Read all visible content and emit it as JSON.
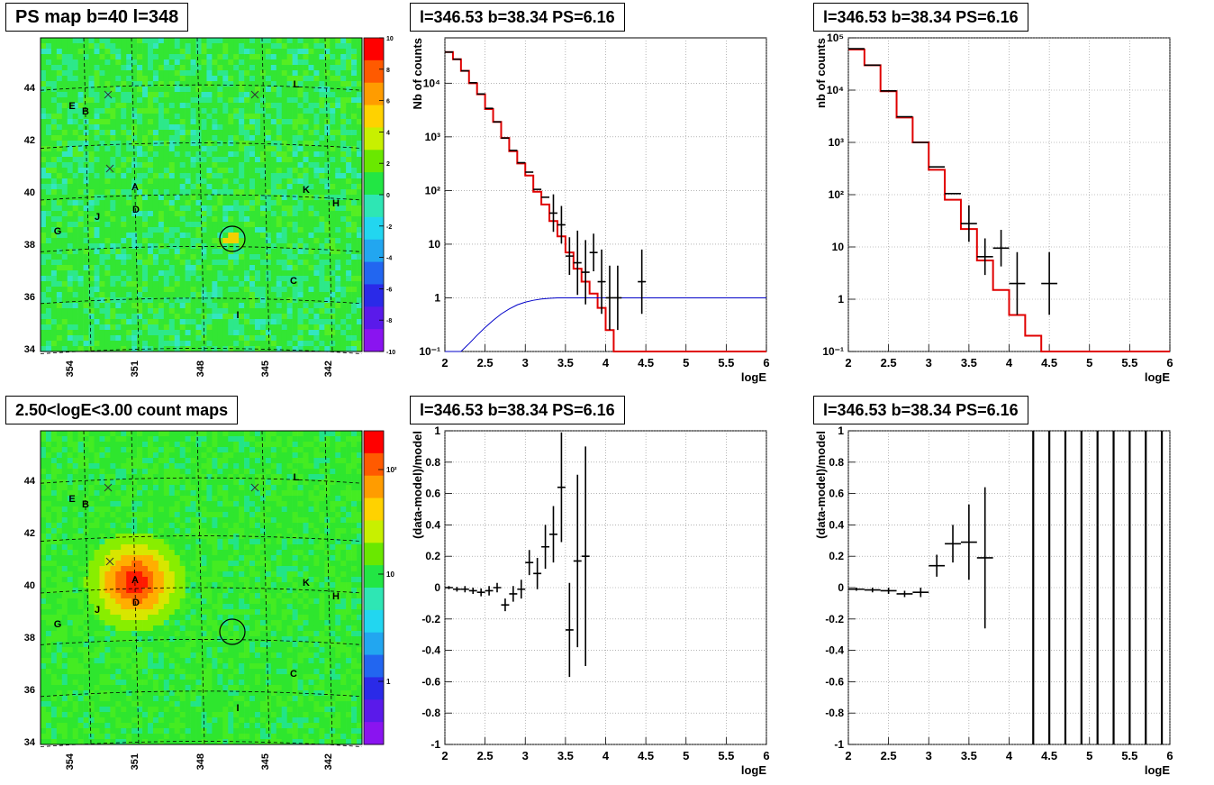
{
  "titles": {
    "ps_map": "PS map b=40 l=348",
    "count_map": "2.50<logE<3.00 count maps",
    "spec_mid": "l=346.53 b=38.34 PS=6.16",
    "spec_right": "l=346.53 b=38.34 PS=6.16",
    "res_mid": "l=346.53 b=38.34 PS=6.16",
    "res_right": "l=346.53 b=38.34 PS=6.16"
  },
  "chart_data": [
    {
      "id": "ps_map",
      "type": "heatmap",
      "x_ticks": [
        "354",
        "351",
        "348",
        "345",
        "342"
      ],
      "y_ticks": [
        "34",
        "36",
        "38",
        "40",
        "42",
        "44"
      ],
      "colorbar_ticks": [
        "10",
        "8",
        "6",
        "4",
        "2",
        "0",
        "-2",
        "-4",
        "-6",
        "-8",
        "-10"
      ],
      "sources": [
        "E",
        "B",
        "A",
        "D",
        "J",
        "G",
        "K",
        "H",
        "L",
        "C",
        "I"
      ]
    },
    {
      "id": "count_map",
      "type": "heatmap",
      "x_ticks": [
        "354",
        "351",
        "348",
        "345",
        "342"
      ],
      "y_ticks": [
        "34",
        "36",
        "38",
        "40",
        "42",
        "44"
      ],
      "colorbar_ticks": [
        "10²",
        "10",
        "1"
      ],
      "sources": [
        "E",
        "B",
        "A",
        "D",
        "J",
        "G",
        "K",
        "H",
        "L",
        "C",
        "I"
      ]
    },
    {
      "id": "spec_mid",
      "type": "line",
      "ylog": true,
      "xlabel": "logE",
      "ylabel": "Nb of counts",
      "xlim": [
        2,
        6
      ],
      "ylim": [
        0.1,
        70000
      ],
      "x_ticks": [
        "2",
        "2.5",
        "3",
        "3.5",
        "4",
        "4.5",
        "5",
        "5.5",
        "6"
      ],
      "y_ticks": [
        "10⁻¹",
        "1",
        "10",
        "10²",
        "10³",
        "10⁴"
      ],
      "model_edges": [
        2.0,
        2.1,
        2.2,
        2.3,
        2.4,
        2.5,
        2.6,
        2.7,
        2.8,
        2.9,
        3.0,
        3.1,
        3.2,
        3.3,
        3.4,
        3.5,
        3.6,
        3.7,
        3.8,
        3.9,
        4.0,
        4.1,
        4.2,
        4.3,
        4.4,
        4.5,
        5.0,
        5.5,
        6.0
      ],
      "model_values": [
        38000,
        28000,
        17000,
        10000,
        6200,
        3300,
        1900,
        950,
        540,
        320,
        190,
        95,
        55,
        27,
        14,
        7,
        3.5,
        2.0,
        1.2,
        0.65,
        0.25,
        0.1,
        0.1,
        0.1,
        0.1,
        0.1,
        0.1,
        0.1
      ],
      "data_points": [
        {
          "x": 2.05,
          "y": 38000
        },
        {
          "x": 2.15,
          "y": 28000
        },
        {
          "x": 2.25,
          "y": 17000
        },
        {
          "x": 2.35,
          "y": 10200
        },
        {
          "x": 2.45,
          "y": 6300
        },
        {
          "x": 2.55,
          "y": 3400
        },
        {
          "x": 2.65,
          "y": 1900
        },
        {
          "x": 2.75,
          "y": 950
        },
        {
          "x": 2.85,
          "y": 560
        },
        {
          "x": 2.95,
          "y": 330
        },
        {
          "x": 3.05,
          "y": 220
        },
        {
          "x": 3.15,
          "y": 105
        },
        {
          "x": 3.25,
          "y": 75
        },
        {
          "x": 3.35,
          "y": 38
        },
        {
          "x": 3.45,
          "y": 23
        },
        {
          "x": 3.55,
          "y": 6
        },
        {
          "x": 3.65,
          "y": 4.5
        },
        {
          "x": 3.75,
          "y": 3
        },
        {
          "x": 3.85,
          "y": 7
        },
        {
          "x": 3.95,
          "y": 2
        },
        {
          "x": 4.05,
          "y": 1
        },
        {
          "x": 4.15,
          "y": 1
        },
        {
          "x": 4.45,
          "y": 2
        }
      ],
      "blue_x": [
        2.0,
        2.1,
        2.2,
        2.3,
        2.4,
        2.5,
        2.6,
        2.7,
        2.8,
        2.9,
        3.0,
        3.1,
        3.2,
        3.3,
        3.4,
        3.5,
        3.6,
        3.7,
        4.0,
        5.0,
        6.0
      ],
      "blue_y": [
        0.1,
        0.1,
        0.1,
        0.14,
        0.2,
        0.28,
        0.38,
        0.5,
        0.62,
        0.74,
        0.83,
        0.9,
        0.95,
        0.98,
        1.0,
        1.0,
        1.0,
        1.0,
        1.0,
        1.0,
        1.0
      ]
    },
    {
      "id": "spec_right",
      "type": "line",
      "ylog": true,
      "xlabel": "logE",
      "ylabel": "nb of counts",
      "xlim": [
        2,
        6
      ],
      "ylim": [
        0.1,
        100000
      ],
      "x_ticks": [
        "2",
        "2.5",
        "3",
        "3.5",
        "4",
        "4.5",
        "5",
        "5.5",
        "6"
      ],
      "y_ticks": [
        "10⁻¹",
        "1",
        "10",
        "10²",
        "10³",
        "10⁴",
        "10⁵"
      ],
      "model_edges": [
        2.0,
        2.2,
        2.4,
        2.6,
        2.8,
        3.0,
        3.2,
        3.4,
        3.6,
        3.8,
        4.0,
        4.2,
        4.4,
        4.6,
        5.0,
        5.5,
        6.0
      ],
      "model_values": [
        60000,
        30000,
        9500,
        3000,
        1000,
        300,
        80,
        22,
        5.5,
        1.5,
        0.5,
        0.2,
        0.1,
        0.1,
        0.1,
        0.1
      ],
      "data_points": [
        {
          "x": 2.1,
          "y": 62000
        },
        {
          "x": 2.3,
          "y": 30000
        },
        {
          "x": 2.5,
          "y": 9700
        },
        {
          "x": 2.7,
          "y": 3100
        },
        {
          "x": 2.9,
          "y": 1000
        },
        {
          "x": 3.1,
          "y": 340
        },
        {
          "x": 3.3,
          "y": 105
        },
        {
          "x": 3.5,
          "y": 28
        },
        {
          "x": 3.7,
          "y": 6.5
        },
        {
          "x": 3.9,
          "y": 9.5
        },
        {
          "x": 4.1,
          "y": 2
        },
        {
          "x": 4.5,
          "y": 2
        }
      ]
    },
    {
      "id": "res_mid",
      "type": "scatter",
      "xlabel": "logE",
      "ylabel": "(data-model)/model",
      "xlim": [
        2,
        6
      ],
      "ylim": [
        -1,
        1
      ],
      "x_ticks": [
        "2",
        "2.5",
        "3",
        "3.5",
        "4",
        "4.5",
        "5",
        "5.5",
        "6"
      ],
      "y_ticks": [
        "-1",
        "-0.8",
        "-0.6",
        "-0.4",
        "-0.2",
        "0",
        "0.2",
        "0.4",
        "0.6",
        "0.8",
        "1"
      ],
      "points": [
        {
          "x": 2.05,
          "y": 0.0,
          "err": 0.01
        },
        {
          "x": 2.15,
          "y": -0.01,
          "err": 0.015
        },
        {
          "x": 2.25,
          "y": -0.01,
          "err": 0.02
        },
        {
          "x": 2.35,
          "y": -0.02,
          "err": 0.02
        },
        {
          "x": 2.45,
          "y": -0.03,
          "err": 0.025
        },
        {
          "x": 2.55,
          "y": -0.02,
          "err": 0.03
        },
        {
          "x": 2.65,
          "y": 0.0,
          "err": 0.03
        },
        {
          "x": 2.75,
          "y": -0.11,
          "err": 0.04
        },
        {
          "x": 2.85,
          "y": -0.04,
          "err": 0.05
        },
        {
          "x": 2.95,
          "y": -0.01,
          "err": 0.06
        },
        {
          "x": 3.05,
          "y": 0.16,
          "err": 0.08
        },
        {
          "x": 3.15,
          "y": 0.09,
          "err": 0.1
        },
        {
          "x": 3.25,
          "y": 0.26,
          "err": 0.14
        },
        {
          "x": 3.35,
          "y": 0.34,
          "err": 0.18
        },
        {
          "x": 3.45,
          "y": 0.64,
          "err": 0.35
        },
        {
          "x": 3.55,
          "y": -0.27,
          "err": 0.3
        },
        {
          "x": 3.65,
          "y": 0.17,
          "err": 0.55
        },
        {
          "x": 3.75,
          "y": 0.2,
          "err": 0.7
        }
      ]
    },
    {
      "id": "res_right",
      "type": "scatter",
      "xlabel": "logE",
      "ylabel": "(data-model)/model",
      "xlim": [
        2,
        6
      ],
      "ylim": [
        -1,
        1
      ],
      "x_ticks": [
        "2",
        "2.5",
        "3",
        "3.5",
        "4",
        "4.5",
        "5",
        "5.5",
        "6"
      ],
      "y_ticks": [
        "-1",
        "-0.8",
        "-0.6",
        "-0.4",
        "-0.2",
        "0",
        "0.2",
        "0.4",
        "0.6",
        "0.8",
        "1"
      ],
      "points": [
        {
          "x": 2.1,
          "y": -0.01,
          "err": 0.01
        },
        {
          "x": 2.3,
          "y": -0.015,
          "err": 0.015
        },
        {
          "x": 2.5,
          "y": -0.02,
          "err": 0.02
        },
        {
          "x": 2.7,
          "y": -0.04,
          "err": 0.02
        },
        {
          "x": 2.9,
          "y": -0.03,
          "err": 0.03
        },
        {
          "x": 3.1,
          "y": 0.14,
          "err": 0.07
        },
        {
          "x": 3.3,
          "y": 0.28,
          "err": 0.12
        },
        {
          "x": 3.5,
          "y": 0.29,
          "err": 0.24
        },
        {
          "x": 3.7,
          "y": 0.19,
          "err": 0.45
        }
      ],
      "vlines_x": [
        4.3,
        4.5,
        4.7,
        4.9,
        5.1,
        5.3,
        5.5,
        5.7,
        5.9
      ]
    }
  ]
}
